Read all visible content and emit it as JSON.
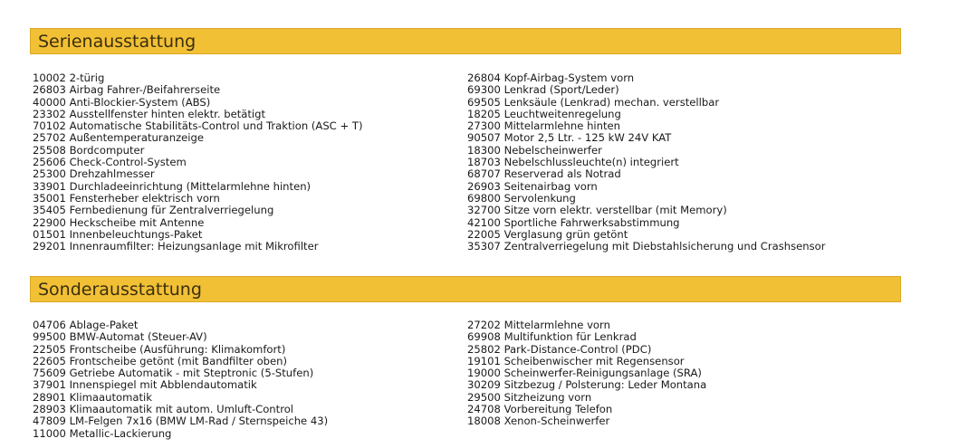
{
  "sections": [
    {
      "title": "Serienausstattung",
      "left": [
        "10002 2-türig",
        "26803 Airbag Fahrer-/Beifahrerseite",
        "40000 Anti-Blockier-System (ABS)",
        "23302 Ausstellfenster hinten elektr. betätigt",
        "70102 Automatische Stabilitäts-Control und Traktion (ASC + T)",
        "25702 Außentemperaturanzeige",
        "25508 Bordcomputer",
        "25606 Check-Control-System",
        "25300 Drehzahlmesser",
        "33901 Durchladeeinrichtung (Mittelarmlehne hinten)",
        "35001 Fensterheber elektrisch vorn",
        "35405 Fernbedienung für Zentralverriegelung",
        "22900 Heckscheibe mit Antenne",
        "01501 Innenbeleuchtungs-Paket",
        "29201 Innenraumfilter: Heizungsanlage mit Mikrofilter"
      ],
      "right": [
        "26804 Kopf-Airbag-System vorn",
        "69300 Lenkrad (Sport/Leder)",
        "69505 Lenksäule (Lenkrad) mechan. verstellbar",
        "18205 Leuchtweitenregelung",
        "27300 Mittelarmlehne hinten",
        "90507 Motor 2,5 Ltr. - 125 kW 24V KAT",
        "18300 Nebelscheinwerfer",
        "18703 Nebelschlussleuchte(n) integriert",
        "68707 Reserverad als Notrad",
        "26903 Seitenairbag vorn",
        "69800 Servolenkung",
        "32700 Sitze vorn elektr. verstellbar (mit Memory)",
        "42100 Sportliche Fahrwerksabstimmung",
        "22005 Verglasung grün getönt",
        "35307 Zentralverriegelung mit Diebstahlsicherung und Crashsensor"
      ]
    },
    {
      "title": "Sonderausstattung",
      "left": [
        "04706 Ablage-Paket",
        "99500 BMW-Automat (Steuer-AV)",
        "22505 Frontscheibe (Ausführung: Klimakomfort)",
        "22605 Frontscheibe getönt (mit Bandfilter oben)",
        "75609 Getriebe Automatik - mit Steptronic (5-Stufen)",
        "37901 Innenspiegel mit Abblendautomatik",
        "28901 Klimaautomatik",
        "28903 Klimaautomatik mit autom. Umluft-Control",
        "47809 LM-Felgen 7x16 (BMW LM-Rad / Sternspeiche 43)",
        "11000 Metallic-Lackierung"
      ],
      "right": [
        "27202 Mittelarmlehne vorn",
        "69908 Multifunktion für Lenkrad",
        "25802 Park-Distance-Control (PDC)",
        "19101 Scheibenwischer mit Regensensor",
        "19000 Scheinwerfer-Reinigungsanlage (SRA)",
        "30209 Sitzbezug / Polsterung: Leder Montana",
        "29500 Sitzheizung vorn",
        "24708 Vorbereitung Telefon",
        "18008 Xenon-Scheinwerfer"
      ]
    }
  ],
  "colors": {
    "header_bg": "#f2c035",
    "header_border": "#d9a823"
  }
}
